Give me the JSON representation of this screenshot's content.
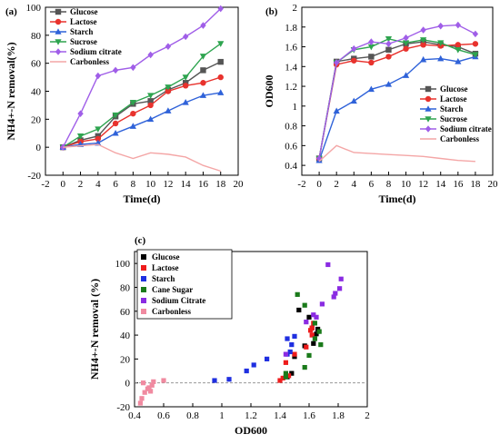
{
  "chart_data": [
    {
      "panel": "(a)",
      "type": "line",
      "xlabel": "Time(d)",
      "ylabel": "NH4+-N removal(%)",
      "xlim": [
        -2,
        20
      ],
      "ylim": [
        -20,
        100
      ],
      "xticks": [
        -2,
        0,
        2,
        4,
        6,
        8,
        10,
        12,
        14,
        16,
        18,
        20
      ],
      "yticks": [
        -20,
        0,
        20,
        40,
        60,
        80,
        100
      ],
      "legend": "top-left",
      "x": [
        0,
        2,
        4,
        6,
        8,
        10,
        12,
        14,
        16,
        18
      ],
      "series": [
        {
          "name": "Glucose",
          "color": "#555555",
          "marker": "square",
          "values": [
            0,
            5,
            8,
            22,
            31,
            33,
            41,
            46,
            55,
            61
          ]
        },
        {
          "name": "Lactose",
          "color": "#e8322d",
          "marker": "circle",
          "values": [
            0,
            4,
            6,
            17,
            24,
            30,
            40,
            44,
            46,
            50
          ]
        },
        {
          "name": "Starch",
          "color": "#2f62d9",
          "marker": "triangle",
          "values": [
            0,
            2,
            3,
            10,
            15,
            20,
            26,
            32,
            37,
            39
          ]
        },
        {
          "name": "Sucrose",
          "color": "#2ea44f",
          "marker": "tri-down",
          "values": [
            0,
            8,
            13,
            23,
            32,
            37,
            43,
            50,
            65,
            74
          ]
        },
        {
          "name": "Sodium citrate",
          "color": "#a05ee8",
          "marker": "diamond",
          "values": [
            0,
            24,
            51,
            55,
            57,
            66,
            72,
            79,
            87,
            99
          ]
        },
        {
          "name": "Carbonless",
          "color": "#f4a6a6",
          "marker": "none",
          "values": [
            0,
            1,
            2,
            -4,
            -8,
            -4,
            -5,
            -7,
            -13,
            -17
          ]
        }
      ]
    },
    {
      "panel": "(b)",
      "type": "line",
      "xlabel": "Time(d)",
      "ylabel": "OD600",
      "xlim": [
        -2,
        20
      ],
      "ylim": [
        0.3,
        2.0
      ],
      "xticks": [
        -2,
        0,
        2,
        4,
        6,
        8,
        10,
        12,
        14,
        16,
        18,
        20
      ],
      "yticks": [
        0.4,
        0.6,
        0.8,
        1.0,
        1.2,
        1.4,
        1.6,
        1.8,
        2.0
      ],
      "legend": "bottom-right",
      "x": [
        0,
        2,
        4,
        6,
        8,
        10,
        12,
        14,
        16,
        18
      ],
      "series": [
        {
          "name": "Glucose",
          "color": "#555555",
          "marker": "square",
          "values": [
            0.47,
            1.45,
            1.48,
            1.5,
            1.57,
            1.63,
            1.65,
            1.62,
            1.6,
            1.53
          ]
        },
        {
          "name": "Lactose",
          "color": "#e8322d",
          "marker": "circle",
          "values": [
            0.47,
            1.42,
            1.46,
            1.44,
            1.5,
            1.58,
            1.62,
            1.61,
            1.62,
            1.63
          ]
        },
        {
          "name": "Starch",
          "color": "#2f62d9",
          "marker": "triangle",
          "values": [
            0.45,
            0.95,
            1.05,
            1.17,
            1.22,
            1.31,
            1.47,
            1.48,
            1.45,
            1.5
          ]
        },
        {
          "name": "Sucrose",
          "color": "#2ea44f",
          "marker": "tri-down",
          "values": [
            0.47,
            1.44,
            1.57,
            1.6,
            1.68,
            1.64,
            1.67,
            1.64,
            1.57,
            1.52
          ]
        },
        {
          "name": "Sodium citrate",
          "color": "#a05ee8",
          "marker": "diamond",
          "values": [
            0.47,
            1.44,
            1.58,
            1.65,
            1.63,
            1.69,
            1.77,
            1.81,
            1.82,
            1.73
          ]
        },
        {
          "name": "Carbonless",
          "color": "#f4a6a6",
          "marker": "none",
          "values": [
            0.44,
            0.6,
            0.53,
            0.52,
            0.51,
            0.5,
            0.49,
            0.47,
            0.45,
            0.44
          ]
        }
      ]
    },
    {
      "panel": "(c)",
      "type": "scatter",
      "xlabel": "OD600",
      "ylabel": "NH4+-N removal (%)",
      "xlim": [
        0.4,
        2.0
      ],
      "ylim": [
        -20,
        110
      ],
      "xticks": [
        0.4,
        0.6,
        0.8,
        1.0,
        1.2,
        1.4,
        1.6,
        1.8,
        2.0
      ],
      "yticks": [
        -20,
        0,
        20,
        40,
        60,
        80,
        100
      ],
      "legend": "top-left",
      "series": [
        {
          "name": "Glucose",
          "color": "#000000",
          "points": [
            [
              1.45,
              5
            ],
            [
              1.48,
              8
            ],
            [
              1.5,
              22
            ],
            [
              1.57,
              31
            ],
            [
              1.63,
              33
            ],
            [
              1.65,
              41
            ],
            [
              1.62,
              46
            ],
            [
              1.6,
              55
            ],
            [
              1.53,
              61
            ],
            [
              1.66,
              45
            ]
          ]
        },
        {
          "name": "Lactose",
          "color": "#ee1c1c",
          "points": [
            [
              1.42,
              4
            ],
            [
              1.46,
              6
            ],
            [
              1.44,
              17
            ],
            [
              1.5,
              24
            ],
            [
              1.58,
              30
            ],
            [
              1.62,
              40
            ],
            [
              1.61,
              44
            ],
            [
              1.62,
              46
            ],
            [
              1.63,
              50
            ],
            [
              1.4,
              2
            ]
          ]
        },
        {
          "name": "Starch",
          "color": "#1f2fe0",
          "points": [
            [
              0.95,
              2
            ],
            [
              1.05,
              3
            ],
            [
              1.17,
              10
            ],
            [
              1.22,
              15
            ],
            [
              1.31,
              20
            ],
            [
              1.47,
              26
            ],
            [
              1.48,
              32
            ],
            [
              1.45,
              37
            ],
            [
              1.5,
              39
            ],
            [
              1.45,
              24
            ]
          ]
        },
        {
          "name": "Cane Sugar",
          "color": "#1a7a1a",
          "points": [
            [
              1.44,
              8
            ],
            [
              1.57,
              13
            ],
            [
              1.6,
              23
            ],
            [
              1.68,
              32
            ],
            [
              1.64,
              37
            ],
            [
              1.67,
              43
            ],
            [
              1.64,
              50
            ],
            [
              1.57,
              65
            ],
            [
              1.52,
              74
            ],
            [
              1.44,
              5
            ]
          ]
        },
        {
          "name": "Sodium Citrate",
          "color": "#8a2be2",
          "points": [
            [
              1.44,
              24
            ],
            [
              1.58,
              51
            ],
            [
              1.65,
              55
            ],
            [
              1.63,
              57
            ],
            [
              1.69,
              66
            ],
            [
              1.77,
              72
            ],
            [
              1.81,
              79
            ],
            [
              1.82,
              87
            ],
            [
              1.73,
              99
            ],
            [
              1.78,
              75
            ]
          ]
        },
        {
          "name": "Carbonless",
          "color": "#f08aa0",
          "points": [
            [
              0.44,
              -17
            ],
            [
              0.45,
              -13
            ],
            [
              0.47,
              -8
            ],
            [
              0.49,
              -5
            ],
            [
              0.5,
              -4
            ],
            [
              0.51,
              -7
            ],
            [
              0.52,
              -2
            ],
            [
              0.53,
              1
            ],
            [
              0.6,
              2
            ],
            [
              0.46,
              0
            ]
          ]
        }
      ]
    }
  ]
}
